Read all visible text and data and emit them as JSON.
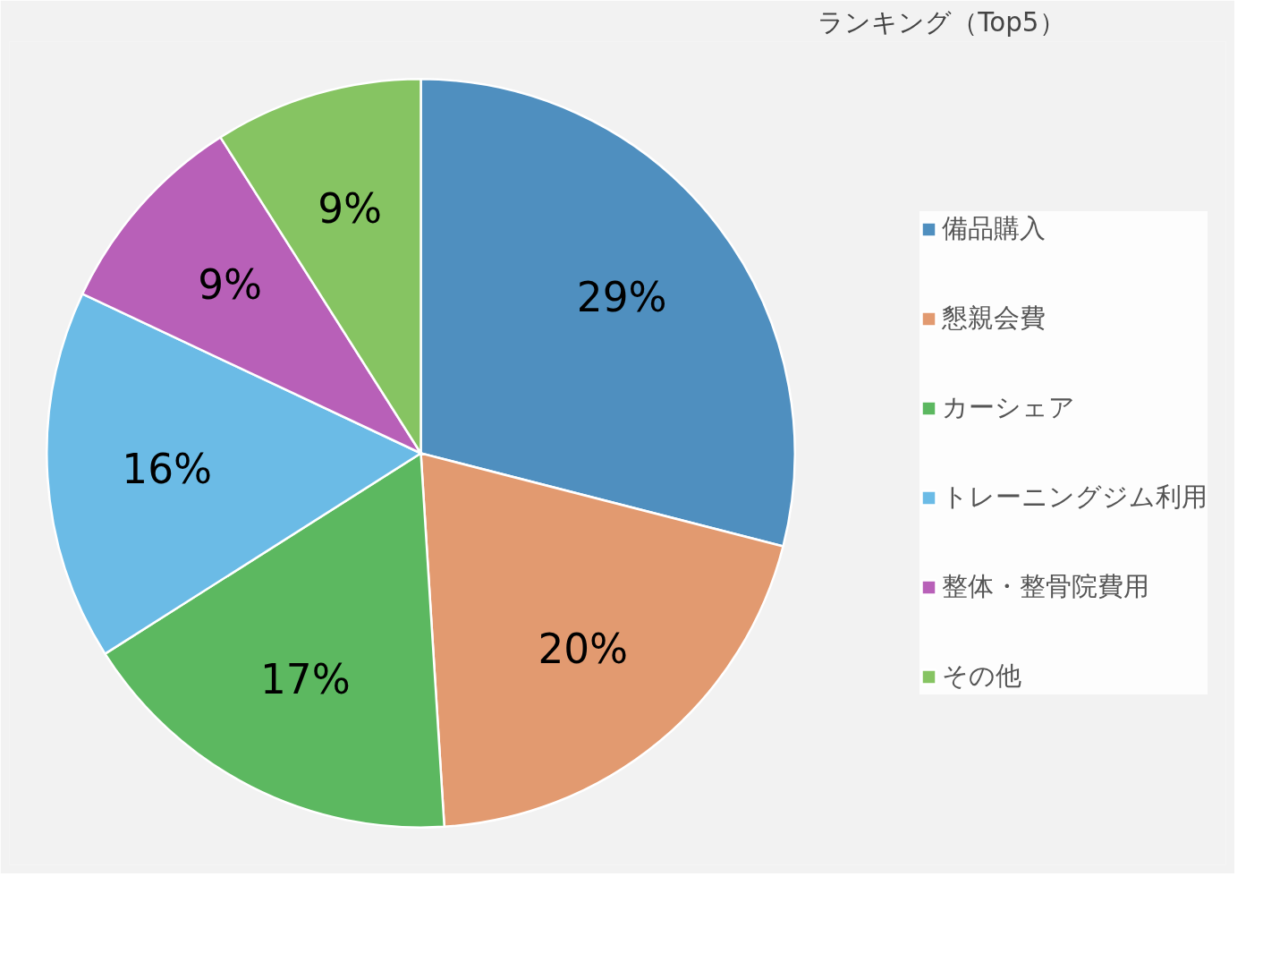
{
  "chart_data": {
    "type": "pie",
    "title": "ランキング（Top5）",
    "categories": [
      "備品購入",
      "懇親会費",
      "カーシェア",
      "トレーニングジム利用",
      "整体・整骨院費用",
      "その他"
    ],
    "values": [
      29,
      20,
      17,
      16,
      9,
      9
    ],
    "colors": [
      "#4f8fbf",
      "#e29a70",
      "#5cb860",
      "#6bbbe6",
      "#b860b8",
      "#86c462"
    ],
    "value_labels": [
      "29%",
      "20%",
      "17%",
      "16%",
      "9%",
      "9%"
    ],
    "legend": "right"
  }
}
